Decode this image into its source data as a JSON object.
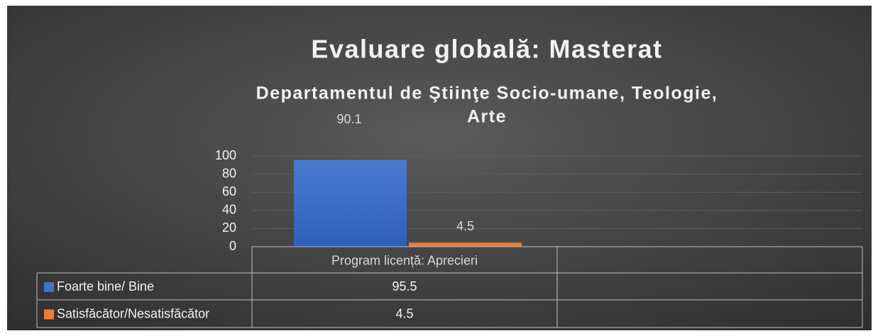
{
  "chart_data": {
    "type": "bar",
    "title": "Evaluare globală: Masterat",
    "subtitle": [
      "Departamentul de Ştiinţe Socio-umane, Teologie,",
      "Arte"
    ],
    "annotations": [
      "90.1"
    ],
    "categories": [
      "Program licență: Aprecieri",
      null
    ],
    "series": [
      {
        "name": "Foarte bine/ Bine",
        "color": "#4472c4",
        "values": [
          95.5,
          null
        ]
      },
      {
        "name": "Satisfăcător/Nesatisfăcător",
        "color": "#ed7d31",
        "values": [
          4.5,
          null
        ]
      }
    ],
    "data_labels_series": [
      1
    ],
    "ylim": [
      0,
      100
    ],
    "yticks": [
      0,
      20,
      40,
      60,
      80,
      100
    ],
    "grid": true,
    "data_table": true
  }
}
